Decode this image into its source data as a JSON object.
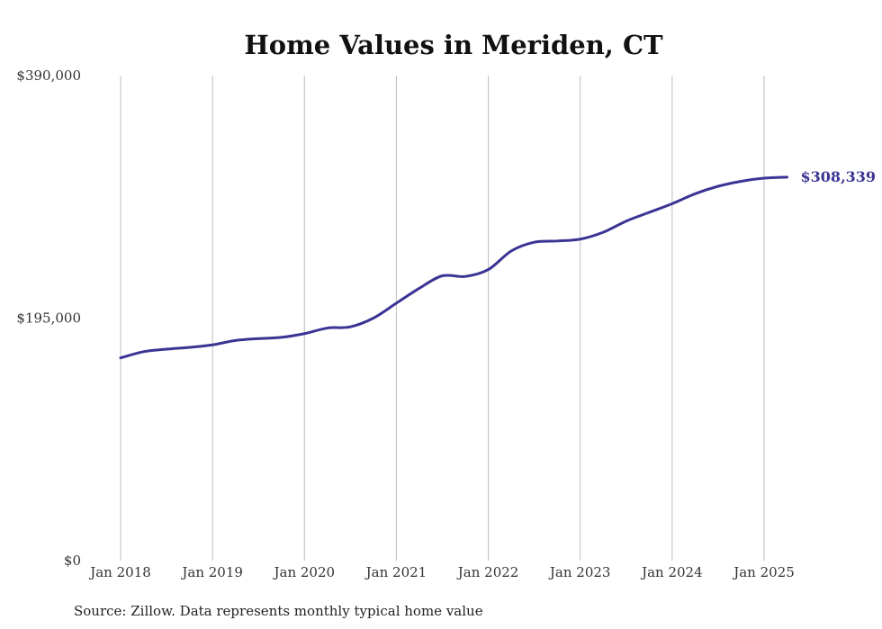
{
  "chart_data": {
    "type": "line",
    "title": "Home Values in Meriden, CT",
    "xlabel": "",
    "ylabel": "",
    "ylim": [
      0,
      390000
    ],
    "y_ticks": [
      "$0",
      "$195,000",
      "$390,000"
    ],
    "y_tick_values": [
      0,
      195000,
      390000
    ],
    "x_ticks": [
      "Jan 2018",
      "Jan 2019",
      "Jan 2020",
      "Jan 2021",
      "Jan 2022",
      "Jan 2023",
      "Jan 2024",
      "Jan 2025"
    ],
    "x_tick_values": [
      2018,
      2019,
      2020,
      2021,
      2022,
      2023,
      2024,
      2025
    ],
    "grid": "vertical",
    "legend": "none",
    "line_color": "#3b3494",
    "end_label": "$308,339",
    "series": [
      {
        "x": [
          2018.0,
          2018.25,
          2018.5,
          2018.75,
          2019.0,
          2019.25,
          2019.5,
          2019.75,
          2020.0,
          2020.25,
          2020.5,
          2020.75,
          2021.0,
          2021.25,
          2021.5,
          2021.75,
          2022.0,
          2022.25,
          2022.5,
          2022.75,
          2023.0,
          2023.25,
          2023.5,
          2023.75,
          2024.0,
          2024.25,
          2024.5,
          2024.75,
          2025.0,
          2025.25
        ],
        "values": [
          163000,
          168000,
          170000,
          171500,
          173500,
          177000,
          178500,
          179500,
          182500,
          187000,
          188000,
          195000,
          207000,
          219000,
          229000,
          228500,
          234000,
          249000,
          256000,
          257000,
          258500,
          264000,
          273000,
          280000,
          287000,
          295000,
          301000,
          305000,
          307500,
          308339
        ]
      }
    ]
  },
  "source_text": "Source: Zillow. Data represents monthly typical home value"
}
